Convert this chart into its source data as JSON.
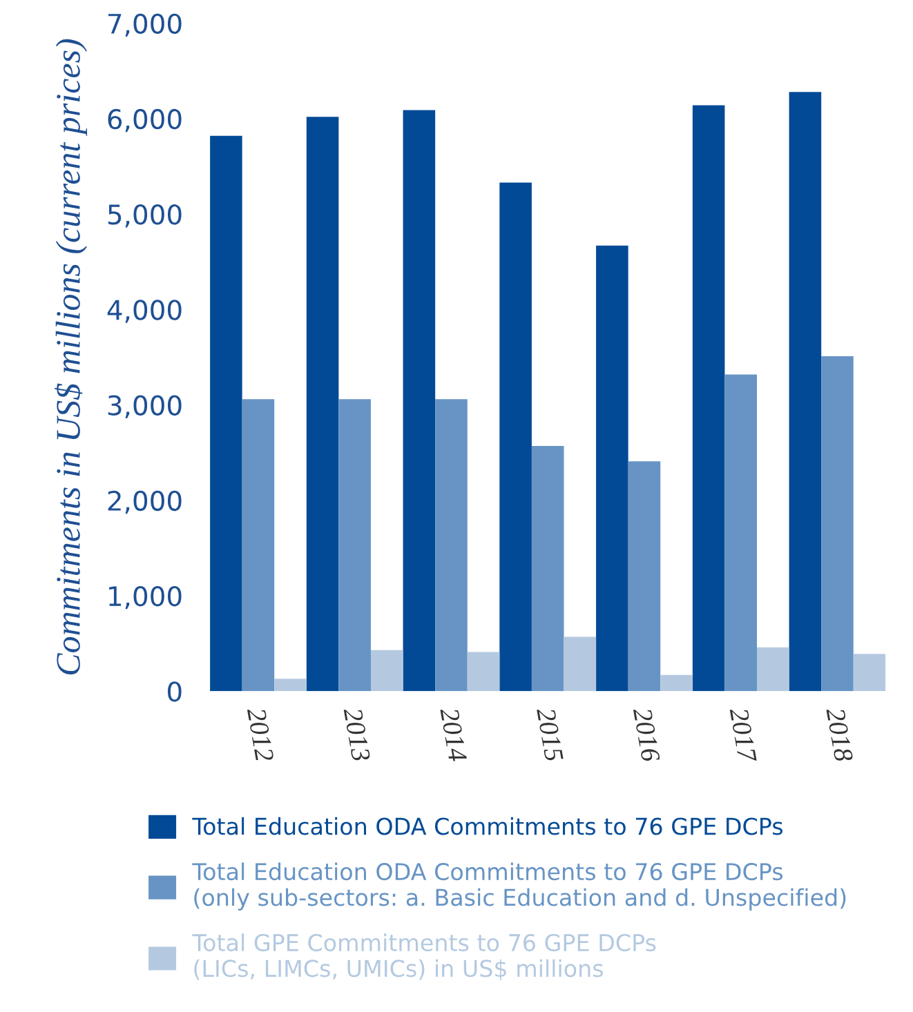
{
  "chart_data": {
    "type": "bar",
    "ylabel": "Commitments in US$ millions (current prices)",
    "categories": [
      "2012",
      "2013",
      "2014",
      "2015",
      "2016",
      "2017",
      "2018"
    ],
    "series": [
      {
        "name": "Total Education ODA Commitments to 76 GPE DCPs",
        "color": "#034a96",
        "values": [
          5820,
          6020,
          6090,
          5330,
          4670,
          6140,
          6280
        ]
      },
      {
        "name": "Total Education ODA Commitments to 76 GPE DCPs\n(only sub-sectors: a. Basic Education and d. Unspecified)",
        "color": "#6794c4",
        "values": [
          3060,
          3060,
          3060,
          2570,
          2410,
          3320,
          3510
        ]
      },
      {
        "name": "Total GPE Commitments to 76 GPE DCPs\n(LICs, LIMCs, UMICs) in US$ millions",
        "color": "#b4c9e0",
        "values": [
          130,
          430,
          410,
          570,
          170,
          460,
          390
        ]
      }
    ],
    "ylim": [
      0,
      7000
    ],
    "yticks": [
      0,
      {
        "value": 1000,
        "label": "1,000"
      },
      {
        "value": 2000,
        "label": "2,000"
      },
      {
        "value": 3000,
        "label": "3,000"
      },
      {
        "value": 4000,
        "label": "4,000"
      },
      {
        "value": 5000,
        "label": "5,000"
      },
      {
        "value": 6000,
        "label": "6,000"
      },
      {
        "value": 7000,
        "label": "7,000"
      }
    ],
    "grid": false,
    "legend": "bottom"
  }
}
